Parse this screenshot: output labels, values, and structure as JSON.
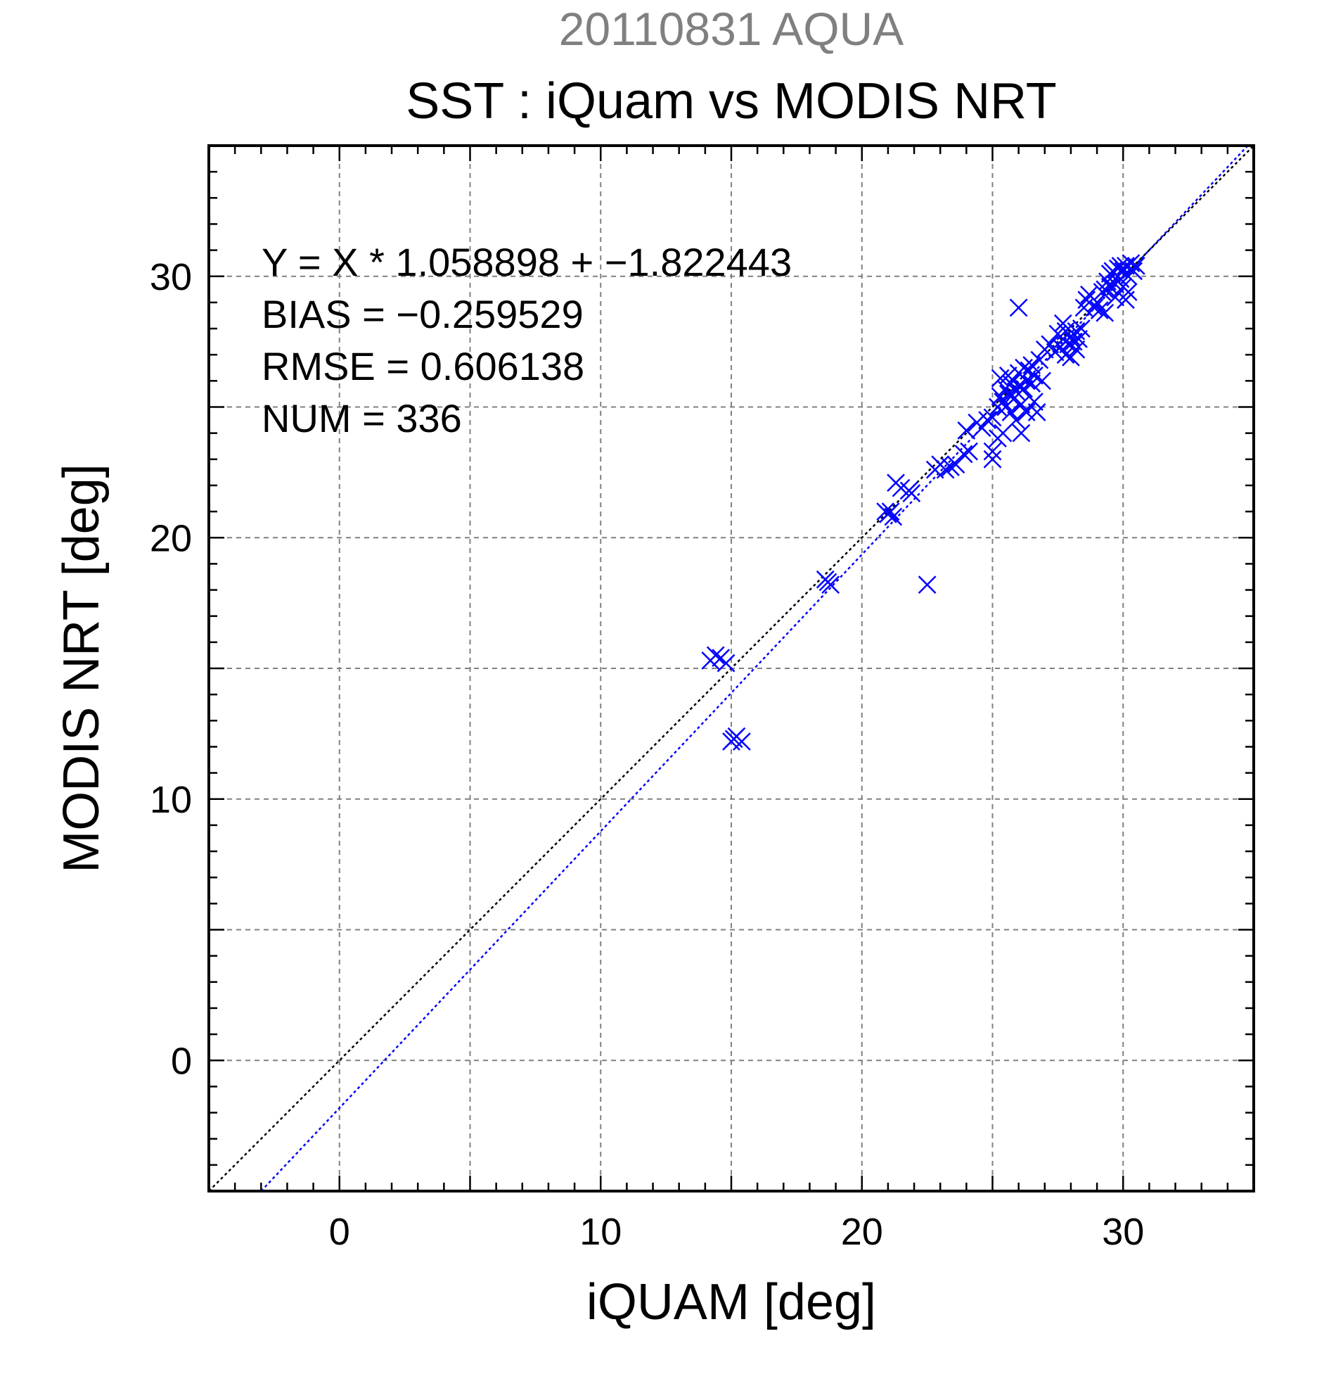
{
  "header": {
    "date_label": "20110831 AQUA",
    "title": "SST : iQuam vs MODIS NRT"
  },
  "stats": {
    "fit": "Y = X * 1.058898 + −1.822443",
    "bias": "BIAS = −0.259529",
    "rmse": "RMSE = 0.606138",
    "num": "NUM = 336"
  },
  "colors": {
    "points": "#0000ff",
    "fit_line": "#0000ff",
    "identity_line": "#000000",
    "date_text": "#808080",
    "grid": "#808080"
  },
  "chart_data": {
    "type": "scatter",
    "title": "SST : iQuam vs MODIS NRT",
    "subtitle": "20110831 AQUA",
    "xlabel": "iQUAM [deg]",
    "ylabel": "MODIS NRT [deg]",
    "xlim": [
      -5,
      35
    ],
    "ylim": [
      -5,
      35
    ],
    "xticks": [
      0,
      10,
      20,
      30
    ],
    "yticks": [
      0,
      10,
      20,
      30
    ],
    "xtick_labels": [
      "0",
      "10",
      "20",
      "30"
    ],
    "ytick_labels": [
      "0",
      "10",
      "20",
      "30"
    ],
    "grid": true,
    "marker": "x",
    "fit": {
      "slope": 1.058898,
      "intercept": -1.822443
    },
    "points": [
      [
        14.2,
        15.3
      ],
      [
        14.4,
        15.5
      ],
      [
        14.6,
        15.4
      ],
      [
        14.8,
        15.2
      ],
      [
        15.0,
        12.2
      ],
      [
        15.2,
        12.4
      ],
      [
        15.4,
        12.2
      ],
      [
        15.1,
        12.3
      ],
      [
        18.6,
        18.4
      ],
      [
        18.8,
        18.2
      ],
      [
        18.7,
        18.3
      ],
      [
        20.9,
        21.0
      ],
      [
        21.0,
        20.9
      ],
      [
        21.2,
        20.8
      ],
      [
        21.1,
        21.0
      ],
      [
        21.3,
        22.1
      ],
      [
        21.5,
        21.9
      ],
      [
        21.8,
        21.8
      ],
      [
        21.9,
        21.7
      ],
      [
        22.5,
        18.2
      ],
      [
        22.8,
        22.6
      ],
      [
        23.0,
        22.8
      ],
      [
        23.2,
        22.6
      ],
      [
        23.4,
        22.7
      ],
      [
        23.6,
        22.8
      ],
      [
        23.9,
        23.2
      ],
      [
        24.1,
        23.3
      ],
      [
        24.0,
        24.1
      ],
      [
        24.4,
        24.4
      ],
      [
        24.6,
        24.2
      ],
      [
        24.8,
        24.5
      ],
      [
        25.0,
        23.0
      ],
      [
        25.0,
        23.3
      ],
      [
        25.0,
        24.6
      ],
      [
        25.2,
        25.0
      ],
      [
        25.2,
        23.8
      ],
      [
        25.3,
        25.4
      ],
      [
        25.3,
        26.1
      ],
      [
        25.4,
        25.2
      ],
      [
        25.4,
        24.0
      ],
      [
        25.5,
        25.7
      ],
      [
        25.5,
        25.0
      ],
      [
        25.6,
        25.5
      ],
      [
        25.6,
        26.2
      ],
      [
        25.7,
        24.8
      ],
      [
        25.7,
        25.9
      ],
      [
        25.8,
        26.0
      ],
      [
        25.8,
        25.3
      ],
      [
        25.9,
        25.6
      ],
      [
        25.9,
        24.5
      ],
      [
        26.0,
        26.3
      ],
      [
        26.0,
        28.8
      ],
      [
        26.0,
        25.8
      ],
      [
        26.1,
        24.0
      ],
      [
        26.1,
        25.1
      ],
      [
        26.2,
        26.5
      ],
      [
        26.2,
        25.7
      ],
      [
        26.3,
        26.0
      ],
      [
        26.3,
        24.8
      ],
      [
        26.4,
        26.4
      ],
      [
        26.5,
        25.9
      ],
      [
        26.5,
        26.6
      ],
      [
        26.6,
        25.2
      ],
      [
        26.6,
        26.2
      ],
      [
        26.7,
        24.8
      ],
      [
        26.8,
        26.8
      ],
      [
        26.9,
        26.0
      ],
      [
        27.0,
        27.2
      ],
      [
        27.2,
        27.4
      ],
      [
        27.4,
        27.1
      ],
      [
        27.5,
        27.8
      ],
      [
        27.6,
        27.3
      ],
      [
        27.7,
        27.6
      ],
      [
        27.7,
        28.2
      ],
      [
        27.8,
        27.0
      ],
      [
        27.8,
        27.9
      ],
      [
        27.9,
        27.4
      ],
      [
        28.0,
        27.7
      ],
      [
        28.0,
        26.9
      ],
      [
        28.1,
        27.5
      ],
      [
        28.2,
        27.9
      ],
      [
        28.2,
        27.2
      ],
      [
        28.3,
        27.6
      ],
      [
        28.4,
        28.0
      ],
      [
        28.5,
        28.8
      ],
      [
        28.6,
        29.1
      ],
      [
        28.7,
        29.3
      ],
      [
        28.9,
        28.8
      ],
      [
        29.0,
        29.0
      ],
      [
        29.1,
        28.7
      ],
      [
        29.2,
        29.4
      ],
      [
        29.3,
        29.5
      ],
      [
        29.3,
        28.6
      ],
      [
        29.4,
        29.8
      ],
      [
        29.5,
        29.6
      ],
      [
        29.5,
        30.1
      ],
      [
        29.6,
        30.2
      ],
      [
        29.7,
        29.7
      ],
      [
        29.7,
        29.2
      ],
      [
        29.8,
        30.0
      ],
      [
        29.8,
        30.3
      ],
      [
        29.9,
        29.9
      ],
      [
        30.0,
        30.2
      ],
      [
        30.0,
        29.6
      ],
      [
        30.1,
        30.4
      ],
      [
        30.1,
        29.1
      ],
      [
        30.2,
        30.0
      ],
      [
        30.3,
        30.5
      ],
      [
        30.4,
        30.2
      ],
      [
        30.5,
        30.4
      ],
      [
        30.2,
        29.4
      ],
      [
        29.9,
        30.4
      ]
    ]
  }
}
